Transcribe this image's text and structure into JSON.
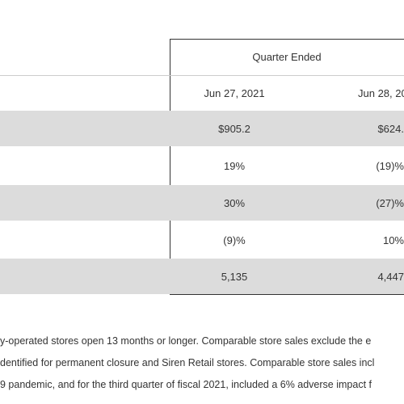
{
  "table": {
    "header": {
      "group": "Quarter Ended",
      "columns": [
        "Jun 27, 2021",
        "Jun 28, 20"
      ]
    },
    "rows": [
      [
        "$905.2",
        "$624."
      ],
      [
        "19%",
        "(19)%"
      ],
      [
        "30%",
        "(27)%"
      ],
      [
        "(9)%",
        "10%"
      ],
      [
        "5,135",
        "4,447"
      ]
    ]
  },
  "footnotes": [
    "y-operated stores open 13 months or longer. Comparable store sales exclude the e",
    "dentified for permanent closure and Siren Retail stores. Comparable store sales incl",
    "9 pandemic, and for the third quarter of fiscal 2021, included a 6% adverse impact f"
  ]
}
